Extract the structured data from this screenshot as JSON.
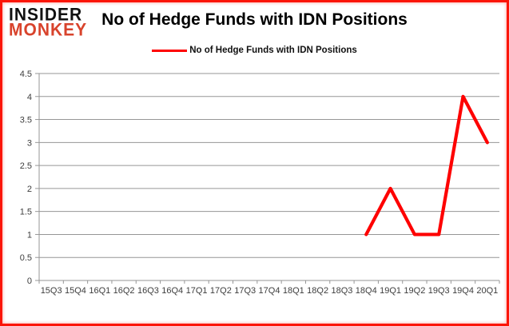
{
  "brand": {
    "line1": "INSIDER",
    "line2": "MONKEY"
  },
  "title": "No of Hedge Funds with IDN Positions",
  "legend": {
    "label": "No of Hedge Funds with IDN Positions",
    "swatch_color": "#fe0000"
  },
  "chart_data": {
    "type": "line",
    "title": "No of Hedge Funds with IDN Positions",
    "categories": [
      "15Q3",
      "15Q4",
      "16Q1",
      "16Q2",
      "16Q3",
      "16Q4",
      "17Q1",
      "17Q2",
      "17Q3",
      "17Q4",
      "18Q1",
      "18Q2",
      "18Q3",
      "18Q4",
      "19Q1",
      "19Q2",
      "19Q3",
      "19Q4",
      "20Q1"
    ],
    "series": [
      {
        "name": "No of Hedge Funds with IDN Positions",
        "color": "#fe0000",
        "values": [
          null,
          null,
          null,
          null,
          null,
          null,
          null,
          null,
          null,
          null,
          null,
          null,
          null,
          1,
          2,
          1,
          1,
          4,
          3
        ]
      }
    ],
    "ylim": [
      0,
      4.5
    ],
    "y_ticks": [
      0,
      0.5,
      1,
      1.5,
      2,
      2.5,
      3,
      3.5,
      4,
      4.5
    ],
    "xlabel": "",
    "ylabel": "",
    "grid": true,
    "legend_position": "top-center"
  },
  "colors": {
    "accent_red": "#fe0000",
    "brand_red": "#d8432c",
    "grid": "#969696",
    "axis_text": "#3d3d3d",
    "border": "#fb1507",
    "background": "#ffffff"
  }
}
